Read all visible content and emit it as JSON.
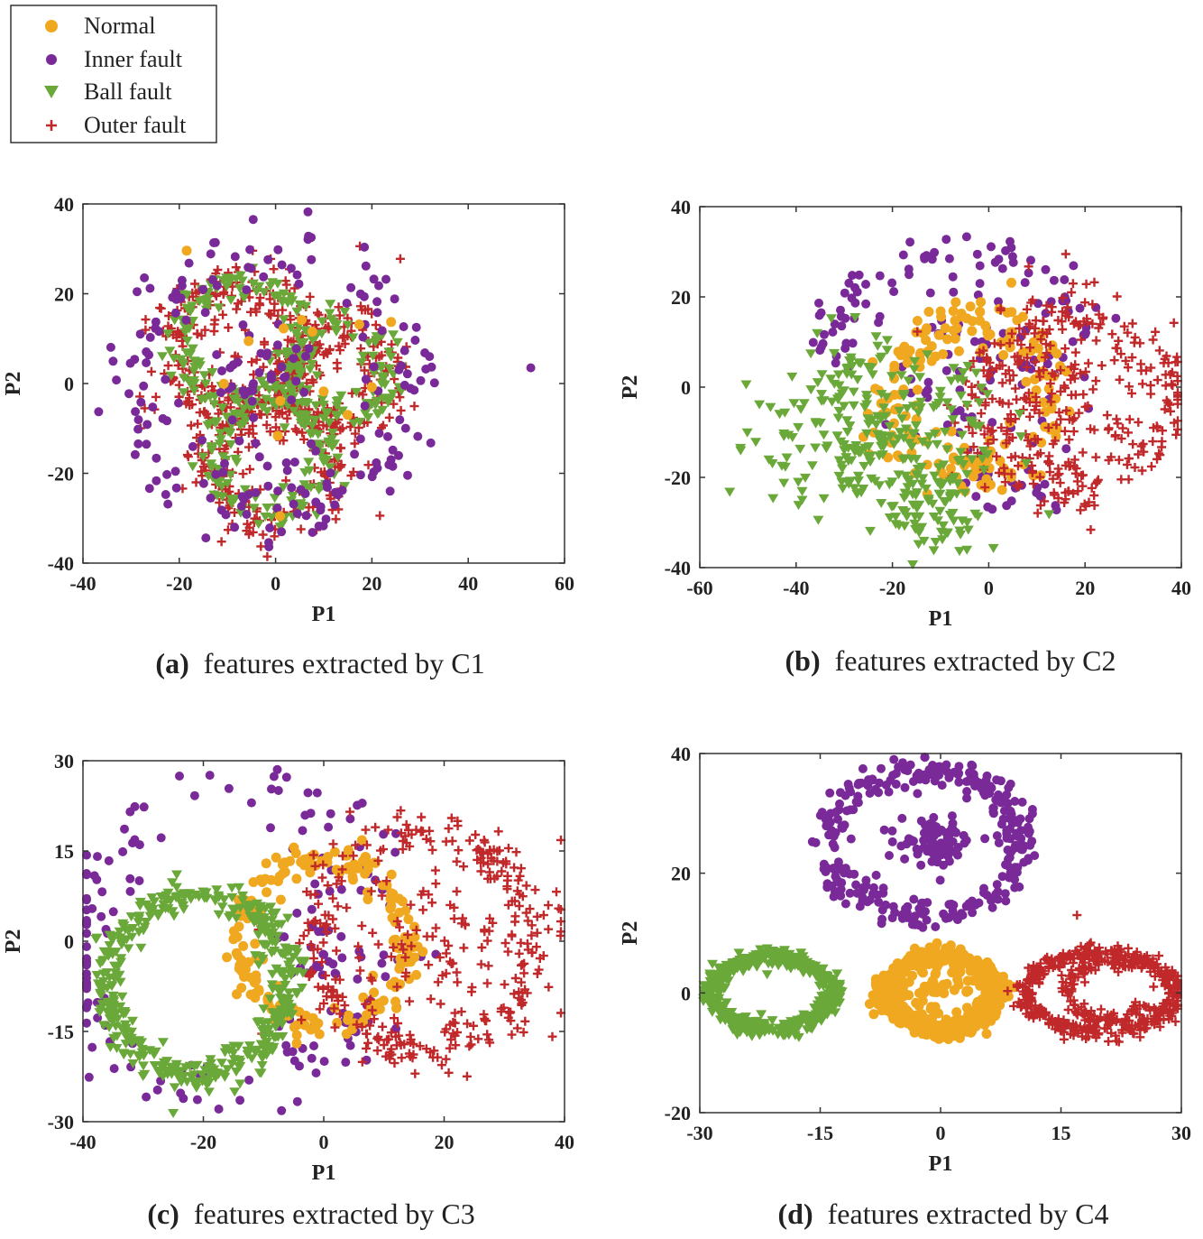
{
  "colors": {
    "normal": "#f0a820",
    "inner": "#7a2a98",
    "ball": "#6aa83a",
    "outer": "#c0282a",
    "axis": "#333333"
  },
  "legend": [
    {
      "key": "normal",
      "label": "Normal",
      "marker": "circle"
    },
    {
      "key": "inner",
      "label": "Inner fault",
      "marker": "circle"
    },
    {
      "key": "ball",
      "label": "Ball fault",
      "marker": "triangle-down"
    },
    {
      "key": "outer",
      "label": "Outer fault",
      "marker": "plus"
    }
  ],
  "chart_data": [
    {
      "id": "a",
      "type": "scatter",
      "caption_bold": "(a)",
      "caption": "features extracted by C1",
      "xlabel": "P1",
      "ylabel": "P2",
      "xlim": [
        -40,
        60
      ],
      "ylim": [
        -40,
        40
      ],
      "xticks": [
        -40,
        -20,
        0,
        20,
        40,
        60
      ],
      "yticks": [
        -40,
        -20,
        0,
        20,
        40
      ],
      "series": [
        {
          "key": "outer",
          "name": "Outer fault",
          "clusters": [
            {
              "shape": "ring",
              "cx": -8,
              "cy": 8,
              "r": 14,
              "sd": 3,
              "n": 220
            },
            {
              "shape": "ring",
              "cx": 12,
              "cy": 2,
              "r": 11,
              "sd": 3,
              "n": 160
            },
            {
              "shape": "ring",
              "cx": 0,
              "cy": -18,
              "r": 13,
              "sd": 3,
              "n": 180
            },
            {
              "shape": "blob",
              "cx": 0,
              "cy": 0,
              "sx": 12,
              "sy": 14,
              "n": 80
            }
          ]
        },
        {
          "key": "ball",
          "name": "Ball fault",
          "clusters": [
            {
              "shape": "ring",
              "cx": -7,
              "cy": 9,
              "r": 13,
              "sd": 2,
              "n": 150
            },
            {
              "shape": "ring",
              "cx": 13,
              "cy": 3,
              "r": 10,
              "sd": 2,
              "n": 110
            },
            {
              "shape": "ring",
              "cx": -1,
              "cy": -17,
              "r": 12,
              "sd": 2,
              "n": 120
            }
          ]
        },
        {
          "key": "inner",
          "name": "Inner fault",
          "clusters": [
            {
              "shape": "ring",
              "cx": 0,
              "cy": 0,
              "r": 29,
              "sd": 4,
              "n": 170
            },
            {
              "shape": "blob",
              "cx": -2,
              "cy": 0,
              "sx": 6,
              "sy": 10,
              "n": 50
            },
            {
              "shape": "point",
              "cx": 53,
              "cy": 3.5
            }
          ]
        },
        {
          "key": "normal",
          "name": "Normal",
          "clusters": [
            {
              "shape": "blob",
              "cx": 3,
              "cy": 2,
              "sx": 12,
              "sy": 12,
              "n": 14
            }
          ]
        }
      ]
    },
    {
      "id": "b",
      "type": "scatter",
      "caption_bold": "(b)",
      "caption": "features extracted by C2",
      "xlabel": "P1",
      "ylabel": "P2",
      "xlim": [
        -60,
        40
      ],
      "ylim": [
        -40,
        40
      ],
      "xticks": [
        -60,
        -40,
        -20,
        0,
        20,
        40
      ],
      "yticks": [
        -40,
        -20,
        0,
        20,
        40
      ],
      "series": [
        {
          "key": "inner",
          "name": "Inner fault",
          "clusters": [
            {
              "shape": "arc",
              "cx": -5,
              "cy": 0,
              "r": 30,
              "sd": 3,
              "a0": 20,
              "a1": 170,
              "n": 80
            },
            {
              "shape": "blob",
              "cx": 0,
              "cy": 5,
              "sx": 10,
              "sy": 12,
              "n": 70
            },
            {
              "shape": "blob",
              "cx": 4,
              "cy": -22,
              "sx": 6,
              "sy": 3,
              "n": 20
            }
          ]
        },
        {
          "key": "normal",
          "name": "Normal",
          "clusters": [
            {
              "shape": "ring",
              "cx": -4,
              "cy": -2,
              "r": 17,
              "sd": 3,
              "n": 180
            }
          ]
        },
        {
          "key": "outer",
          "name": "Outer fault",
          "clusters": [
            {
              "shape": "ring",
              "cx": 18,
              "cy": -3,
              "r": 19,
              "sd": 3,
              "n": 220
            },
            {
              "shape": "blob",
              "cx": 14,
              "cy": -2,
              "sx": 10,
              "sy": 10,
              "n": 150
            },
            {
              "shape": "point",
              "cx": 16,
              "cy": 29.5
            }
          ]
        },
        {
          "key": "ball",
          "name": "Ball fault",
          "clusters": [
            {
              "shape": "blob",
              "cx": -22,
              "cy": -10,
              "sx": 12,
              "sy": 10,
              "n": 260
            },
            {
              "shape": "blob",
              "cx": -12,
              "cy": -26,
              "sx": 7,
              "sy": 5,
              "n": 70
            }
          ]
        }
      ]
    },
    {
      "id": "c",
      "type": "scatter",
      "caption_bold": "(c)",
      "caption": "features extracted by C3",
      "xlabel": "P1",
      "ylabel": "P2",
      "xlim": [
        -40,
        40
      ],
      "ylim": [
        -30,
        30
      ],
      "xticks": [
        -40,
        -20,
        0,
        20,
        40
      ],
      "yticks": [
        -30,
        -15,
        0,
        15,
        30
      ],
      "series": [
        {
          "key": "inner",
          "name": "Inner fault",
          "clusters": [
            {
              "shape": "ring",
              "cx": -15,
              "cy": 0,
              "r": 26,
              "sd": 3,
              "n": 130
            },
            {
              "shape": "blob",
              "cx": 0,
              "cy": -3,
              "sx": 4,
              "sy": 10,
              "n": 50
            }
          ]
        },
        {
          "key": "normal",
          "name": "Normal",
          "clusters": [
            {
              "shape": "ring",
              "cx": 0,
              "cy": 0,
              "r": 14,
              "sd": 1.5,
              "n": 200
            }
          ]
        },
        {
          "key": "outer",
          "name": "Outer fault",
          "clusters": [
            {
              "shape": "ring",
              "cx": 17,
              "cy": 0,
              "r": 18,
              "sd": 2,
              "n": 260
            },
            {
              "shape": "blob",
              "cx": 20,
              "cy": 0,
              "sx": 10,
              "sy": 9,
              "n": 120
            }
          ]
        },
        {
          "key": "ball",
          "name": "Ball fault",
          "clusters": [
            {
              "shape": "ring",
              "cx": -21,
              "cy": -7,
              "r": 15,
              "sd": 1.5,
              "n": 420
            },
            {
              "shape": "point",
              "cx": -27,
              "cy": 7.5
            },
            {
              "shape": "point",
              "cx": -25,
              "cy": -28.5
            }
          ]
        }
      ]
    },
    {
      "id": "d",
      "type": "scatter",
      "caption_bold": "(d)",
      "caption": "features extracted by C4",
      "xlabel": "P1",
      "ylabel": "P2",
      "xlim": [
        -30,
        30
      ],
      "ylim": [
        -20,
        40
      ],
      "xticks": [
        -30,
        -15,
        0,
        15,
        30
      ],
      "yticks": [
        -20,
        0,
        20,
        40
      ],
      "series": [
        {
          "key": "inner",
          "name": "Inner fault",
          "clusters": [
            {
              "shape": "ring",
              "cx": -2,
              "cy": 25,
              "r": 12,
              "sd": 1.3,
              "n": 300
            },
            {
              "shape": "blob",
              "cx": -0.5,
              "cy": 25,
              "sx": 2.2,
              "sy": 1.8,
              "n": 80
            }
          ]
        },
        {
          "key": "ball",
          "name": "Ball fault",
          "clusters": [
            {
              "shape": "ellipse",
              "cx": -21,
              "cy": 0,
              "rx": 7.5,
              "ry": 6,
              "sd": 0.8,
              "n": 500
            }
          ]
        },
        {
          "key": "normal",
          "name": "Normal",
          "clusters": [
            {
              "shape": "ellipse",
              "cx": 0,
              "cy": 0,
              "rx": 7,
              "ry": 6,
              "sd": 0.9,
              "n": 500
            },
            {
              "shape": "blob",
              "cx": 0,
              "cy": 0,
              "sx": 3,
              "sy": 2.5,
              "n": 60
            }
          ]
        },
        {
          "key": "outer",
          "name": "Outer fault",
          "clusters": [
            {
              "shape": "ellipse",
              "cx": 20,
              "cy": 0,
              "rx": 9.5,
              "ry": 6.5,
              "sd": 0.9,
              "n": 420
            },
            {
              "shape": "arc",
              "cx": 21,
              "cy": 0.5,
              "r": 5,
              "sd": 0.6,
              "a0": 30,
              "a1": 330,
              "n": 120
            },
            {
              "shape": "point",
              "cx": 17,
              "cy": 13
            }
          ]
        }
      ]
    }
  ]
}
